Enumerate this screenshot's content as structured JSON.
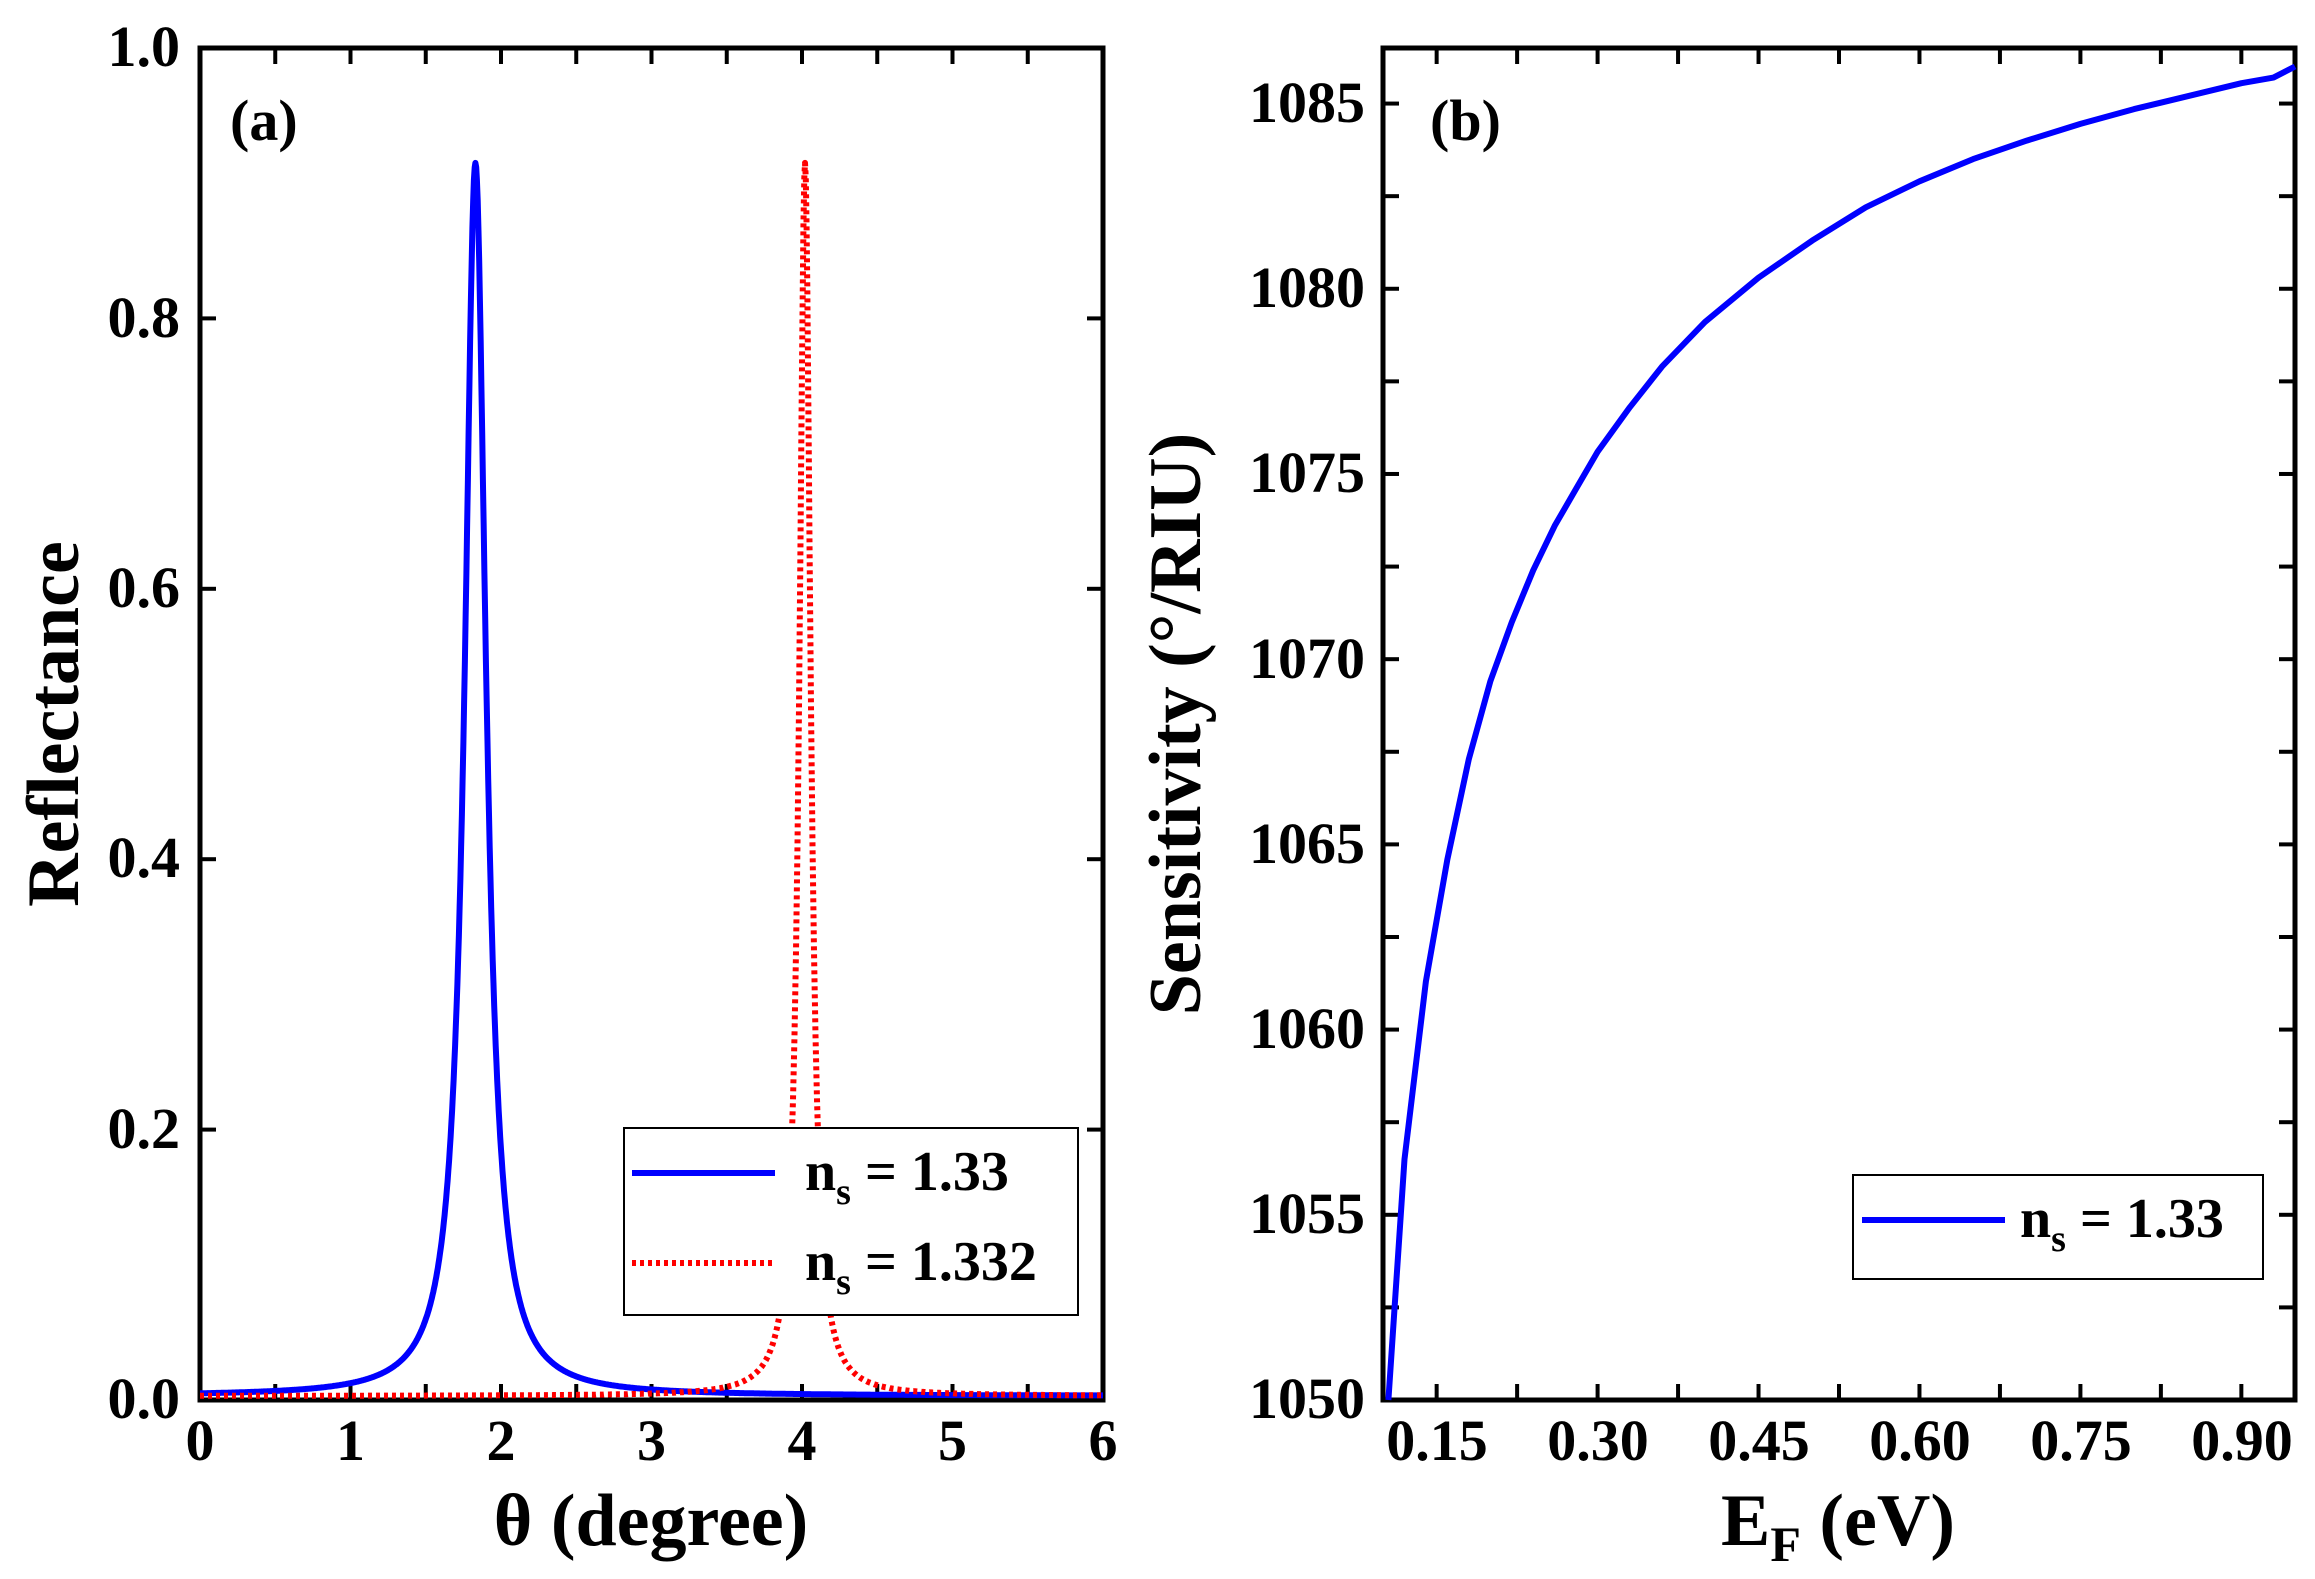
{
  "chart_data": [
    {
      "type": "line",
      "panel_label": "(a)",
      "xlabel": "θ (degree)",
      "ylabel": "Reflectance",
      "xlim": [
        0,
        6
      ],
      "ylim": [
        0,
        1.0
      ],
      "xticks": [
        "0",
        "1",
        "2",
        "3",
        "4",
        "5",
        "6"
      ],
      "yticks": [
        "0.0",
        "0.2",
        "0.4",
        "0.6",
        "0.8",
        "1.0"
      ],
      "legend_position": "bottom-right",
      "series": [
        {
          "name_main": "n",
          "name_sub": "s",
          "name_rest": " = 1.33",
          "color": "#0000ff",
          "style": "solid",
          "peak_center": 1.83,
          "peak_width": 0.085,
          "peak_height": 0.915,
          "baseline": 0.003
        },
        {
          "name_main": "n",
          "name_sub": "s",
          "name_rest": " = 1.332",
          "color": "#ff0000",
          "style": "dotted",
          "peak_center": 4.02,
          "peak_width": 0.045,
          "peak_height": 0.915,
          "baseline": 0.003
        }
      ]
    },
    {
      "type": "line",
      "panel_label": "(b)",
      "xlabel_main": "E",
      "xlabel_sub": "F",
      "xlabel_rest": " (eV)",
      "ylabel": "Sensitivity (°/RIU)",
      "xlim": [
        0.1,
        0.95
      ],
      "ylim": [
        1050,
        1086.5
      ],
      "xticks": [
        "0.15",
        "0.30",
        "0.45",
        "0.60",
        "0.75",
        "0.90"
      ],
      "yticks": [
        "1050",
        "1055",
        "1060",
        "1065",
        "1070",
        "1075",
        "1080",
        "1085"
      ],
      "legend_position": "bottom-right",
      "series": [
        {
          "name_main": "n",
          "name_sub": "s",
          "name_rest": " = 1.33",
          "color": "#0000ff",
          "style": "solid",
          "x": [
            0.105,
            0.12,
            0.14,
            0.16,
            0.18,
            0.2,
            0.22,
            0.24,
            0.26,
            0.28,
            0.3,
            0.33,
            0.36,
            0.4,
            0.45,
            0.5,
            0.55,
            0.6,
            0.65,
            0.7,
            0.75,
            0.8,
            0.85,
            0.9,
            0.93,
            0.95
          ],
          "y": [
            1050.0,
            1056.5,
            1061.3,
            1064.6,
            1067.3,
            1069.4,
            1071.0,
            1072.4,
            1073.6,
            1074.6,
            1075.6,
            1076.8,
            1077.9,
            1079.1,
            1080.3,
            1081.3,
            1082.2,
            1082.9,
            1083.5,
            1084.0,
            1084.45,
            1084.85,
            1085.2,
            1085.55,
            1085.7,
            1086.0
          ]
        }
      ]
    }
  ]
}
